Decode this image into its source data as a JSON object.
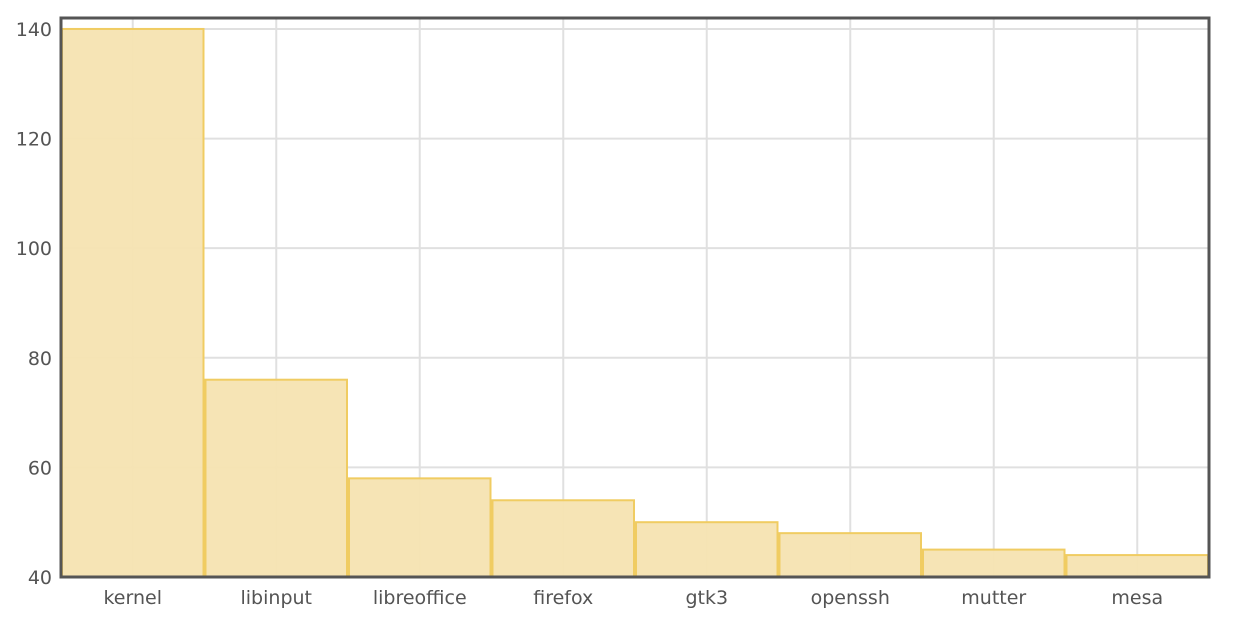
{
  "chart_data": {
    "type": "bar",
    "title": "",
    "xlabel": "",
    "ylabel": "",
    "categories": [
      "kernel",
      "libinput",
      "libreoffice",
      "firefox",
      "gtk3",
      "openssh",
      "mutter",
      "mesa"
    ],
    "values": [
      140,
      76,
      58,
      54,
      50,
      48,
      45,
      44
    ],
    "ylim": [
      40,
      142
    ],
    "yticks": [
      40,
      60,
      80,
      100,
      120,
      140
    ],
    "grid": true,
    "legend": "none",
    "colors": {
      "bar_fill": "#f5e3b1",
      "bar_stroke": "#f0cc62",
      "grid": "#e0e0e0",
      "frame": "#555555"
    }
  }
}
